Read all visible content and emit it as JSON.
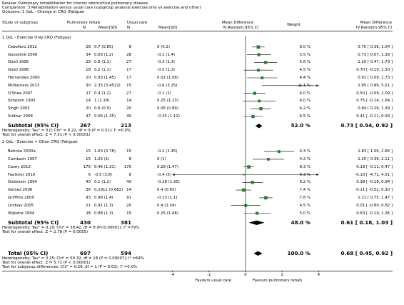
{
  "header": {
    "review": "Review:  Pulmonary rehabilitation for chronic obstructive pulmonary disease",
    "comparison": "Comparison:  3 Rehabilitation versus usual care (subgroup analysis exercise only vs exercise and other)",
    "outcome": "Outcome:  1 QoL - Change in CRQ (Fatigue)"
  },
  "columns": {
    "study": "Study or subgroup",
    "group1": "Pulmonary rehab",
    "group2": "Usual care",
    "n": "N",
    "mean_sd": "Mean(SD)",
    "md_title": "Mean Difference",
    "md_method": "IV,Random,95% CI",
    "weight": "Weight",
    "md2_title": "Mean Difference",
    "md2_method": "IV,Random,95% CI"
  },
  "chart_data": {
    "type": "forest",
    "effect_measure": "Mean Difference, IV, Random, 95% CI",
    "xlim": [
      -4,
      4
    ],
    "x_ticks": [
      "-4",
      "-2",
      "0",
      "2",
      "4"
    ],
    "x_label_left": "Favours usual care",
    "x_label_right": "Favours pulmonary rehab",
    "subgroups": [
      {
        "title": "1 QoL - Exercise Only CRQ (Fatigue)",
        "studies": [
          {
            "name": "Cebollero 2012",
            "n1": "28",
            "msd1": "0.7 (0.85)",
            "n2": "8",
            "msd2": "0 (0.2)",
            "weight": "8.0 %",
            "ci_text": "0.70 [ 0.36, 1.04 ]",
            "md": 0.7,
            "lo": 0.36,
            "hi": 1.04
          },
          {
            "name": "Gosselink 2000",
            "n1": "34",
            "msd1": "0.63 (1.2)",
            "n2": "28",
            "msd2": "-0.1 (1.4)",
            "weight": "5.5 %",
            "ci_text": "0.73 [ 0.07, 1.39 ]",
            "md": 0.73,
            "lo": 0.07,
            "hi": 1.39
          },
          {
            "name": "Güell 1995",
            "n1": "29",
            "msd1": "0.8 (1.1)",
            "n2": "27",
            "msd2": "-0.3 (1.3)",
            "weight": "5.6 %",
            "ci_text": "1.10 [ 0.47, 1.73 ]",
            "md": 1.1,
            "lo": 0.47,
            "hi": 1.73
          },
          {
            "name": "Güell 1998",
            "n1": "18",
            "msd1": "0.2 (1.1)",
            "n2": "17",
            "msd2": "-0.5 (1.3)",
            "weight": "4.5 %",
            "ci_text": "0.70 [ -0.10, 1.50 ]",
            "md": 0.7,
            "lo": -0.1,
            "hi": 1.5
          },
          {
            "name": "Hernandez 2000",
            "n1": "20",
            "msd1": "0.93 (1.45)",
            "n2": "17",
            "msd2": "0.02 (1.08)",
            "weight": "4.4 %",
            "ci_text": "0.91 [ 0.09, 1.73 ]",
            "md": 0.91,
            "lo": 0.09,
            "hi": 1.73
          },
          {
            "name": "McNamara 2013",
            "n1": "30",
            "msd1": "2.35 (3.4522)",
            "n2": "15",
            "msd2": "-0.6 (3.25)",
            "weight": "1.1 %",
            "ci_text": "2.95 [ 0.89, 5.01 ]",
            "md": 2.95,
            "lo": 0.89,
            "hi": 5.01
          },
          {
            "name": "O'Shea 2007",
            "n1": "27",
            "msd1": "0.4 (1.2)",
            "n2": "27",
            "msd2": "-0.1 (1)",
            "weight": "6.0 %",
            "ci_text": "0.50 [ -0.09, 1.09 ]",
            "md": 0.5,
            "lo": -0.09,
            "hi": 1.09
          },
          {
            "name": "Simpson 1992",
            "n1": "14",
            "msd1": "1 (1.18)",
            "n2": "14",
            "msd2": "0.25 (1.23)",
            "weight": "4.0 %",
            "ci_text": "0.75 [ -0.14, 1.64 ]",
            "md": 0.75,
            "lo": -0.14,
            "hi": 1.64
          },
          {
            "name": "Singh 2003",
            "n1": "20",
            "msd1": "0.9 (0.9)",
            "n2": "20",
            "msd2": "0.06 (0.89)",
            "weight": "6.2 %",
            "ci_text": "0.84 [ 0.29, 1.39 ]",
            "md": 0.84,
            "lo": 0.29,
            "hi": 1.39
          },
          {
            "name": "Sridhar 2008",
            "n1": "47",
            "msd1": "0.06 (1.35)",
            "n2": "40",
            "msd2": "-0.35 (1.11)",
            "weight": "6.5 %",
            "ci_text": "0.41 [ -0.11, 0.93 ]",
            "md": 0.41,
            "lo": -0.11,
            "hi": 0.93
          }
        ],
        "subtotal": {
          "label": "Subtotal (95% CI)",
          "n1": "267",
          "n2": "213",
          "weight": "52.0 %",
          "ci_text": "0.73 [ 0.54, 0.92 ]",
          "md": 0.73,
          "lo": 0.54,
          "hi": 0.92
        },
        "heterogeneity": "Heterogeneity: Tau² = 0.0; Chi² = 8.22, df = 9 (P = 0.51); I² =0.0%",
        "overall_test": "Test for overall effect: Z = 7.51 (P < 0.00001)"
      },
      {
        "title": "2 QoL - Exercise + Other CRQ (Fatigue)",
        "studies": [
          {
            "name": "Behnke 2000a",
            "n1": "15",
            "msd1": "1.63 (0.78)",
            "n2": "15",
            "msd2": "-0.2 (1.45)",
            "weight": "4.3 %",
            "ci_text": "1.83 [ 1.00, 2.66 ]",
            "md": 1.83,
            "lo": 1.0,
            "hi": 2.66
          },
          {
            "name": "Cambach 1997",
            "n1": "15",
            "msd1": "1.25 (1)",
            "n2": "8",
            "msd2": "0 (1)",
            "weight": "4.2 %",
            "ci_text": "1.25 [ 0.39, 2.11 ]",
            "md": 1.25,
            "lo": 0.39,
            "hi": 2.11
          },
          {
            "name": "Casey 2013",
            "n1": "176",
            "msd1": "0.46 (1.31)",
            "n2": "170",
            "msd2": "0.28 (1.47)",
            "weight": "8.3 %",
            "ci_text": "0.18 [ -0.11, 0.47 ]",
            "md": 0.18,
            "lo": -0.11,
            "hi": 0.47
          },
          {
            "name": "Faulkner 2010",
            "n1": "6",
            "msd1": "-0.5 (3.8)",
            "n2": "8",
            "msd2": "-0.4 (5)",
            "weight": "0.3 %",
            "ci_text": "-0.10 [ -4.71, 4.51 ]",
            "md": -0.1,
            "lo": -4.71,
            "hi": 4.51
          },
          {
            "name": "Goldstein 1994",
            "n1": "40",
            "msd1": "0.1 (1.2)",
            "n2": "40",
            "msd2": "-0.28 (1.35)",
            "weight": "6.2 %",
            "ci_text": "0.38 [ -0.18, 0.94 ]",
            "md": 0.38,
            "lo": -0.18,
            "hi": 0.94
          },
          {
            "name": "Gomez 2006",
            "n1": "36",
            "msd1": "0.2911 (0.682)",
            "n2": "14",
            "msd2": "0.4 (0.65)",
            "weight": "7.4 %",
            "ci_text": "-0.11 [ -0.52, 0.30 ]",
            "md": -0.11,
            "lo": -0.52,
            "hi": 0.3
          },
          {
            "name": "Griffiths 2000",
            "n1": "93",
            "msd1": "0.98 (1.4)",
            "n2": "91",
            "msd2": "-0.13 (1.1)",
            "weight": "7.8 %",
            "ci_text": "1.11 [ 0.75, 1.47 ]",
            "md": 1.11,
            "lo": 0.75,
            "hi": 1.47
          },
          {
            "name": "Lindsay 2005",
            "n1": "21",
            "msd1": "0.41 (1.3)",
            "n2": "20",
            "msd2": "0.4 (1.34)",
            "weight": "4.5 %",
            "ci_text": "0.01 [ -0.80, 0.82 ]",
            "md": 0.01,
            "lo": -0.8,
            "hi": 0.82
          },
          {
            "name": "Wijkstra 1994",
            "n1": "28",
            "msd1": "0.88 (1.3)",
            "n2": "15",
            "msd2": "0.25 (1.08)",
            "weight": "5.0 %",
            "ci_text": "0.63 [ -0.10, 1.36 ]",
            "md": 0.63,
            "lo": -0.1,
            "hi": 1.36
          }
        ],
        "subtotal": {
          "label": "Subtotal (95% CI)",
          "n1": "430",
          "n2": "381",
          "weight": "48.0 %",
          "ci_text": "0.61 [ 0.18, 1.03 ]",
          "md": 0.61,
          "lo": 0.18,
          "hi": 1.03
        },
        "heterogeneity": "Heterogeneity: Tau² = 0.29; Chi² = 38.42, df = 8 (P<0.00001); I² =79%",
        "overall_test": "Test for overall effect: Z = 2.78 (P = 0.0055)"
      }
    ],
    "total": {
      "label": "Total (95% CI)",
      "n1": "697",
      "n2": "594",
      "weight": "100.0 %",
      "ci_text": "0.68 [ 0.45, 0.92 ]",
      "md": 0.68,
      "lo": 0.45,
      "hi": 0.92
    },
    "total_heterogeneity": "Heterogeneity: Tau² = 0.15; Chi² = 50.32, df = 18 (P = 0.00007); I² =64%",
    "total_overall_test": "Test for overall effect: Z = 5.71 (P < 0.00001)",
    "subgroup_test": "Test for subgroup differences: Chi² = 0.26, df = 1 (P = 0.61), I² =0.0%",
    "colors": {
      "marker": "#2e7d32",
      "diamond": "#000000",
      "line": "#000000"
    }
  }
}
